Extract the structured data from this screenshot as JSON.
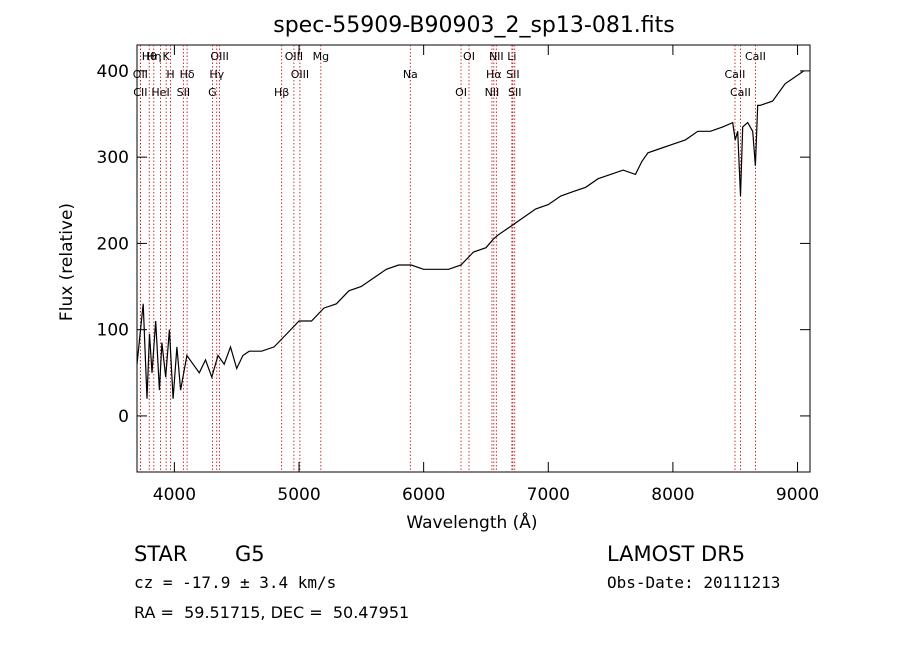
{
  "chart_data": {
    "type": "line",
    "title": "spec-55909-B90903_2_sp13-081.fits",
    "xlabel": "Wavelength (Å)",
    "ylabel": "Flux (relative)",
    "xlim": [
      3700,
      9100
    ],
    "ylim": [
      -65,
      430
    ],
    "x_ticks": [
      4000,
      5000,
      6000,
      7000,
      8000,
      9000
    ],
    "y_ticks": [
      0,
      100,
      200,
      300,
      400
    ],
    "grid": false,
    "legend": "none",
    "line_color": "#000000",
    "marker_color": "#c00000",
    "series": [
      {
        "x": [
          3700,
          3750,
          3780,
          3800,
          3820,
          3850,
          3880,
          3900,
          3930,
          3960,
          3990,
          4020,
          4050,
          4100,
          4150,
          4200,
          4250,
          4300,
          4350,
          4400,
          4450,
          4500,
          4550,
          4600,
          4700,
          4800,
          4900,
          5000,
          5100,
          5200,
          5300,
          5400,
          5500,
          5600,
          5700,
          5800,
          5900,
          6000,
          6100,
          6200,
          6300,
          6400,
          6500,
          6560,
          6600,
          6700,
          6800,
          6900,
          7000,
          7100,
          7200,
          7300,
          7400,
          7500,
          7600,
          7700,
          7750,
          7800,
          7900,
          8000,
          8100,
          8200,
          8300,
          8400,
          8480,
          8500,
          8520,
          8542,
          8560,
          8600,
          8640,
          8662,
          8680,
          8700,
          8800,
          8900,
          9000,
          9050
        ],
        "y": [
          60,
          130,
          20,
          95,
          50,
          110,
          30,
          85,
          45,
          100,
          20,
          80,
          30,
          70,
          60,
          50,
          65,
          45,
          70,
          60,
          80,
          55,
          70,
          75,
          75,
          80,
          95,
          110,
          110,
          125,
          130,
          145,
          150,
          160,
          170,
          175,
          175,
          170,
          170,
          170,
          175,
          190,
          195,
          205,
          210,
          220,
          230,
          240,
          245,
          255,
          260,
          265,
          275,
          280,
          285,
          280,
          295,
          305,
          310,
          315,
          320,
          330,
          330,
          335,
          340,
          320,
          330,
          255,
          335,
          340,
          330,
          290,
          360,
          360,
          365,
          385,
          395,
          400
        ]
      }
    ],
    "marker_lines": [
      {
        "labels": [
          "Hθ"
        ],
        "x": 3798
      },
      {
        "labels": [
          "OII"
        ],
        "x": 3727
      },
      {
        "labels": [
          "CII"
        ],
        "x": 3727
      },
      {
        "labels": [
          "K"
        ],
        "x": 3934
      },
      {
        "labels": [
          "H"
        ],
        "x": 3969
      },
      {
        "labels": [
          "HeI"
        ],
        "x": 3889
      },
      {
        "labels": [
          "Hη"
        ],
        "x": 3835
      },
      {
        "labels": [
          "Hδ"
        ],
        "x": 4102
      },
      {
        "labels": [
          "SII"
        ],
        "x": 4072
      },
      {
        "labels": [
          "OIII"
        ],
        "x": 4363
      },
      {
        "labels": [
          "Hγ"
        ],
        "x": 4340
      },
      {
        "labels": [
          "G"
        ],
        "x": 4305
      },
      {
        "labels": [
          "OIII"
        ],
        "x": 4959
      },
      {
        "labels": [
          "OIII"
        ],
        "x": 5007
      },
      {
        "labels": [
          "Hβ"
        ],
        "x": 4861
      },
      {
        "labels": [
          "Mg"
        ],
        "x": 5175
      },
      {
        "labels": [
          "Na"
        ],
        "x": 5893
      },
      {
        "labels": [
          "OI"
        ],
        "x": 6300
      },
      {
        "labels": [
          "OI"
        ],
        "x": 6364
      },
      {
        "labels": [
          "Hα"
        ],
        "x": 6563
      },
      {
        "labels": [
          "NII"
        ],
        "x": 6548
      },
      {
        "labels": [
          "NII"
        ],
        "x": 6583
      },
      {
        "labels": [
          "SII"
        ],
        "x": 6716
      },
      {
        "labels": [
          "SII"
        ],
        "x": 6731
      },
      {
        "labels": [
          "Li"
        ],
        "x": 6708
      },
      {
        "labels": [
          "CaII"
        ],
        "x": 8498
      },
      {
        "labels": [
          "CaII"
        ],
        "x": 8542
      },
      {
        "labels": [
          "CaII"
        ],
        "x": 8662
      }
    ]
  },
  "footer": {
    "class_label": "STAR",
    "subclass_label": "G5",
    "survey_label": "LAMOST DR5",
    "cz_text": "cz = -17.9 ± 3.4 km/s",
    "obs_date_text": "Obs-Date: 20111213",
    "coords_text": "RA =  59.51715, DEC =  50.47951"
  }
}
